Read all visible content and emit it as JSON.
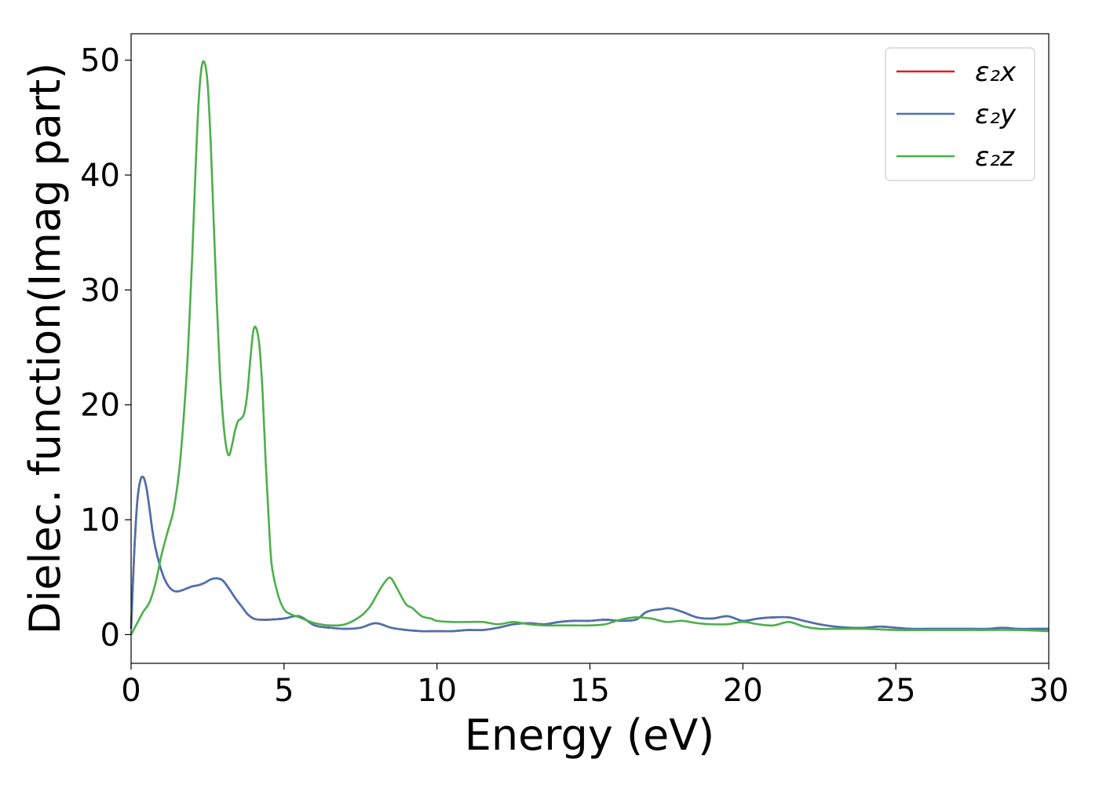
{
  "chart_data": {
    "type": "line",
    "title": "",
    "xlabel": "Energy (eV)",
    "ylabel": "Dielec. function(Imag part)",
    "xlim": [
      0,
      30
    ],
    "ylim": [
      -2.5,
      52.3
    ],
    "xticks": [
      0,
      5,
      10,
      15,
      20,
      25,
      30
    ],
    "yticks": [
      0,
      10,
      20,
      30,
      40,
      50
    ],
    "grid": false,
    "legend_position": "top-right",
    "series": [
      {
        "name": "ε₂x",
        "color": "#e41a1c",
        "x": [
          0.0,
          0.1,
          0.2,
          0.3,
          0.4,
          0.5,
          0.6,
          0.7,
          0.8,
          1.0,
          1.2,
          1.4,
          1.6,
          1.8,
          2.0,
          2.2,
          2.4,
          2.6,
          2.8,
          3.0,
          3.2,
          3.4,
          3.6,
          3.8,
          4.0,
          4.2,
          4.5,
          5.0,
          5.5,
          6.0,
          6.5,
          7.0,
          7.5,
          8.0,
          8.5,
          9.0,
          9.5,
          10.0,
          10.5,
          11.0,
          11.5,
          12.0,
          12.5,
          13.0,
          13.5,
          14.0,
          14.5,
          15.0,
          15.5,
          16.0,
          16.5,
          16.8,
          17.0,
          17.3,
          17.6,
          18.0,
          18.5,
          19.0,
          19.5,
          20.0,
          20.5,
          21.0,
          21.5,
          22.0,
          22.5,
          23.0,
          23.5,
          24.0,
          24.5,
          25.0,
          25.5,
          26.0,
          26.5,
          27.0,
          27.5,
          28.0,
          28.5,
          29.0,
          29.5,
          30.0
        ],
        "values": [
          0.5,
          7.0,
          11.5,
          13.4,
          13.7,
          12.8,
          11.0,
          9.0,
          7.5,
          5.5,
          4.3,
          3.8,
          3.8,
          4.0,
          4.2,
          4.3,
          4.5,
          4.8,
          4.9,
          4.7,
          4.0,
          3.2,
          2.5,
          1.8,
          1.4,
          1.3,
          1.3,
          1.4,
          1.6,
          0.8,
          0.6,
          0.5,
          0.6,
          1.0,
          0.6,
          0.4,
          0.3,
          0.3,
          0.3,
          0.4,
          0.4,
          0.6,
          0.9,
          1.0,
          0.9,
          1.1,
          1.2,
          1.2,
          1.3,
          1.2,
          1.3,
          1.9,
          2.1,
          2.2,
          2.3,
          2.0,
          1.5,
          1.4,
          1.6,
          1.2,
          1.4,
          1.5,
          1.5,
          1.2,
          0.9,
          0.7,
          0.6,
          0.6,
          0.7,
          0.6,
          0.5,
          0.5,
          0.5,
          0.5,
          0.5,
          0.5,
          0.6,
          0.5,
          0.5,
          0.5
        ]
      },
      {
        "name": "ε₂y",
        "color": "#4a72b0",
        "x": [
          0.0,
          0.1,
          0.2,
          0.3,
          0.4,
          0.5,
          0.6,
          0.7,
          0.8,
          1.0,
          1.2,
          1.4,
          1.6,
          1.8,
          2.0,
          2.2,
          2.4,
          2.6,
          2.8,
          3.0,
          3.2,
          3.4,
          3.6,
          3.8,
          4.0,
          4.2,
          4.5,
          5.0,
          5.5,
          6.0,
          6.5,
          7.0,
          7.5,
          8.0,
          8.5,
          9.0,
          9.5,
          10.0,
          10.5,
          11.0,
          11.5,
          12.0,
          12.5,
          13.0,
          13.5,
          14.0,
          14.5,
          15.0,
          15.5,
          16.0,
          16.5,
          16.8,
          17.0,
          17.3,
          17.6,
          18.0,
          18.5,
          19.0,
          19.5,
          20.0,
          20.5,
          21.0,
          21.5,
          22.0,
          22.5,
          23.0,
          23.5,
          24.0,
          24.5,
          25.0,
          25.5,
          26.0,
          26.5,
          27.0,
          27.5,
          28.0,
          28.5,
          29.0,
          29.5,
          30.0
        ],
        "values": [
          0.5,
          7.0,
          11.5,
          13.4,
          13.7,
          12.8,
          11.0,
          9.0,
          7.5,
          5.5,
          4.3,
          3.8,
          3.8,
          4.0,
          4.2,
          4.3,
          4.5,
          4.8,
          4.9,
          4.7,
          4.0,
          3.2,
          2.5,
          1.8,
          1.4,
          1.3,
          1.3,
          1.4,
          1.6,
          0.8,
          0.6,
          0.5,
          0.6,
          1.0,
          0.6,
          0.4,
          0.3,
          0.3,
          0.3,
          0.4,
          0.4,
          0.6,
          0.9,
          1.0,
          0.9,
          1.1,
          1.2,
          1.2,
          1.3,
          1.2,
          1.3,
          1.9,
          2.1,
          2.2,
          2.3,
          2.0,
          1.5,
          1.4,
          1.6,
          1.2,
          1.4,
          1.5,
          1.5,
          1.2,
          0.9,
          0.7,
          0.6,
          0.6,
          0.7,
          0.6,
          0.5,
          0.5,
          0.5,
          0.5,
          0.5,
          0.5,
          0.6,
          0.5,
          0.5,
          0.5
        ]
      },
      {
        "name": "ε₂z",
        "color": "#4daf4a",
        "x": [
          0.0,
          0.2,
          0.4,
          0.6,
          0.8,
          1.0,
          1.2,
          1.4,
          1.6,
          1.8,
          1.9,
          2.0,
          2.1,
          2.2,
          2.3,
          2.4,
          2.5,
          2.6,
          2.7,
          2.8,
          2.9,
          3.0,
          3.1,
          3.2,
          3.3,
          3.4,
          3.5,
          3.6,
          3.7,
          3.8,
          3.9,
          4.0,
          4.1,
          4.2,
          4.3,
          4.4,
          4.5,
          4.6,
          4.8,
          5.0,
          5.2,
          5.5,
          6.0,
          6.5,
          7.0,
          7.5,
          7.8,
          8.0,
          8.2,
          8.4,
          8.5,
          8.6,
          8.8,
          9.0,
          9.2,
          9.5,
          9.8,
          10.0,
          10.5,
          11.0,
          11.5,
          12.0,
          12.5,
          13.0,
          13.5,
          14.0,
          14.5,
          15.0,
          15.5,
          16.0,
          16.5,
          17.0,
          17.5,
          18.0,
          18.5,
          19.0,
          19.5,
          20.0,
          20.5,
          21.0,
          21.5,
          22.0,
          22.5,
          23.0,
          24.0,
          25.0,
          26.0,
          27.0,
          28.0,
          29.0,
          30.0
        ],
        "values": [
          0.0,
          1.0,
          2.0,
          2.8,
          4.5,
          7.0,
          9.0,
          11.0,
          15.0,
          22.0,
          27.0,
          33.0,
          40.0,
          46.0,
          49.3,
          49.8,
          48.0,
          43.0,
          36.0,
          29.0,
          23.0,
          19.0,
          16.5,
          15.6,
          16.5,
          17.8,
          18.6,
          18.8,
          19.3,
          21.0,
          24.0,
          26.5,
          26.6,
          25.0,
          21.0,
          15.0,
          10.0,
          6.0,
          3.5,
          2.2,
          1.8,
          1.5,
          1.0,
          0.8,
          0.9,
          1.6,
          2.4,
          3.3,
          4.2,
          4.9,
          4.9,
          4.5,
          3.5,
          2.6,
          2.3,
          1.6,
          1.4,
          1.2,
          1.1,
          1.1,
          1.1,
          0.9,
          1.1,
          0.9,
          0.8,
          0.8,
          0.8,
          0.8,
          0.9,
          1.3,
          1.5,
          1.4,
          1.1,
          1.2,
          1.0,
          0.9,
          0.9,
          1.1,
          0.9,
          0.8,
          1.1,
          0.7,
          0.5,
          0.5,
          0.5,
          0.4,
          0.4,
          0.4,
          0.4,
          0.4,
          0.3
        ]
      }
    ]
  }
}
